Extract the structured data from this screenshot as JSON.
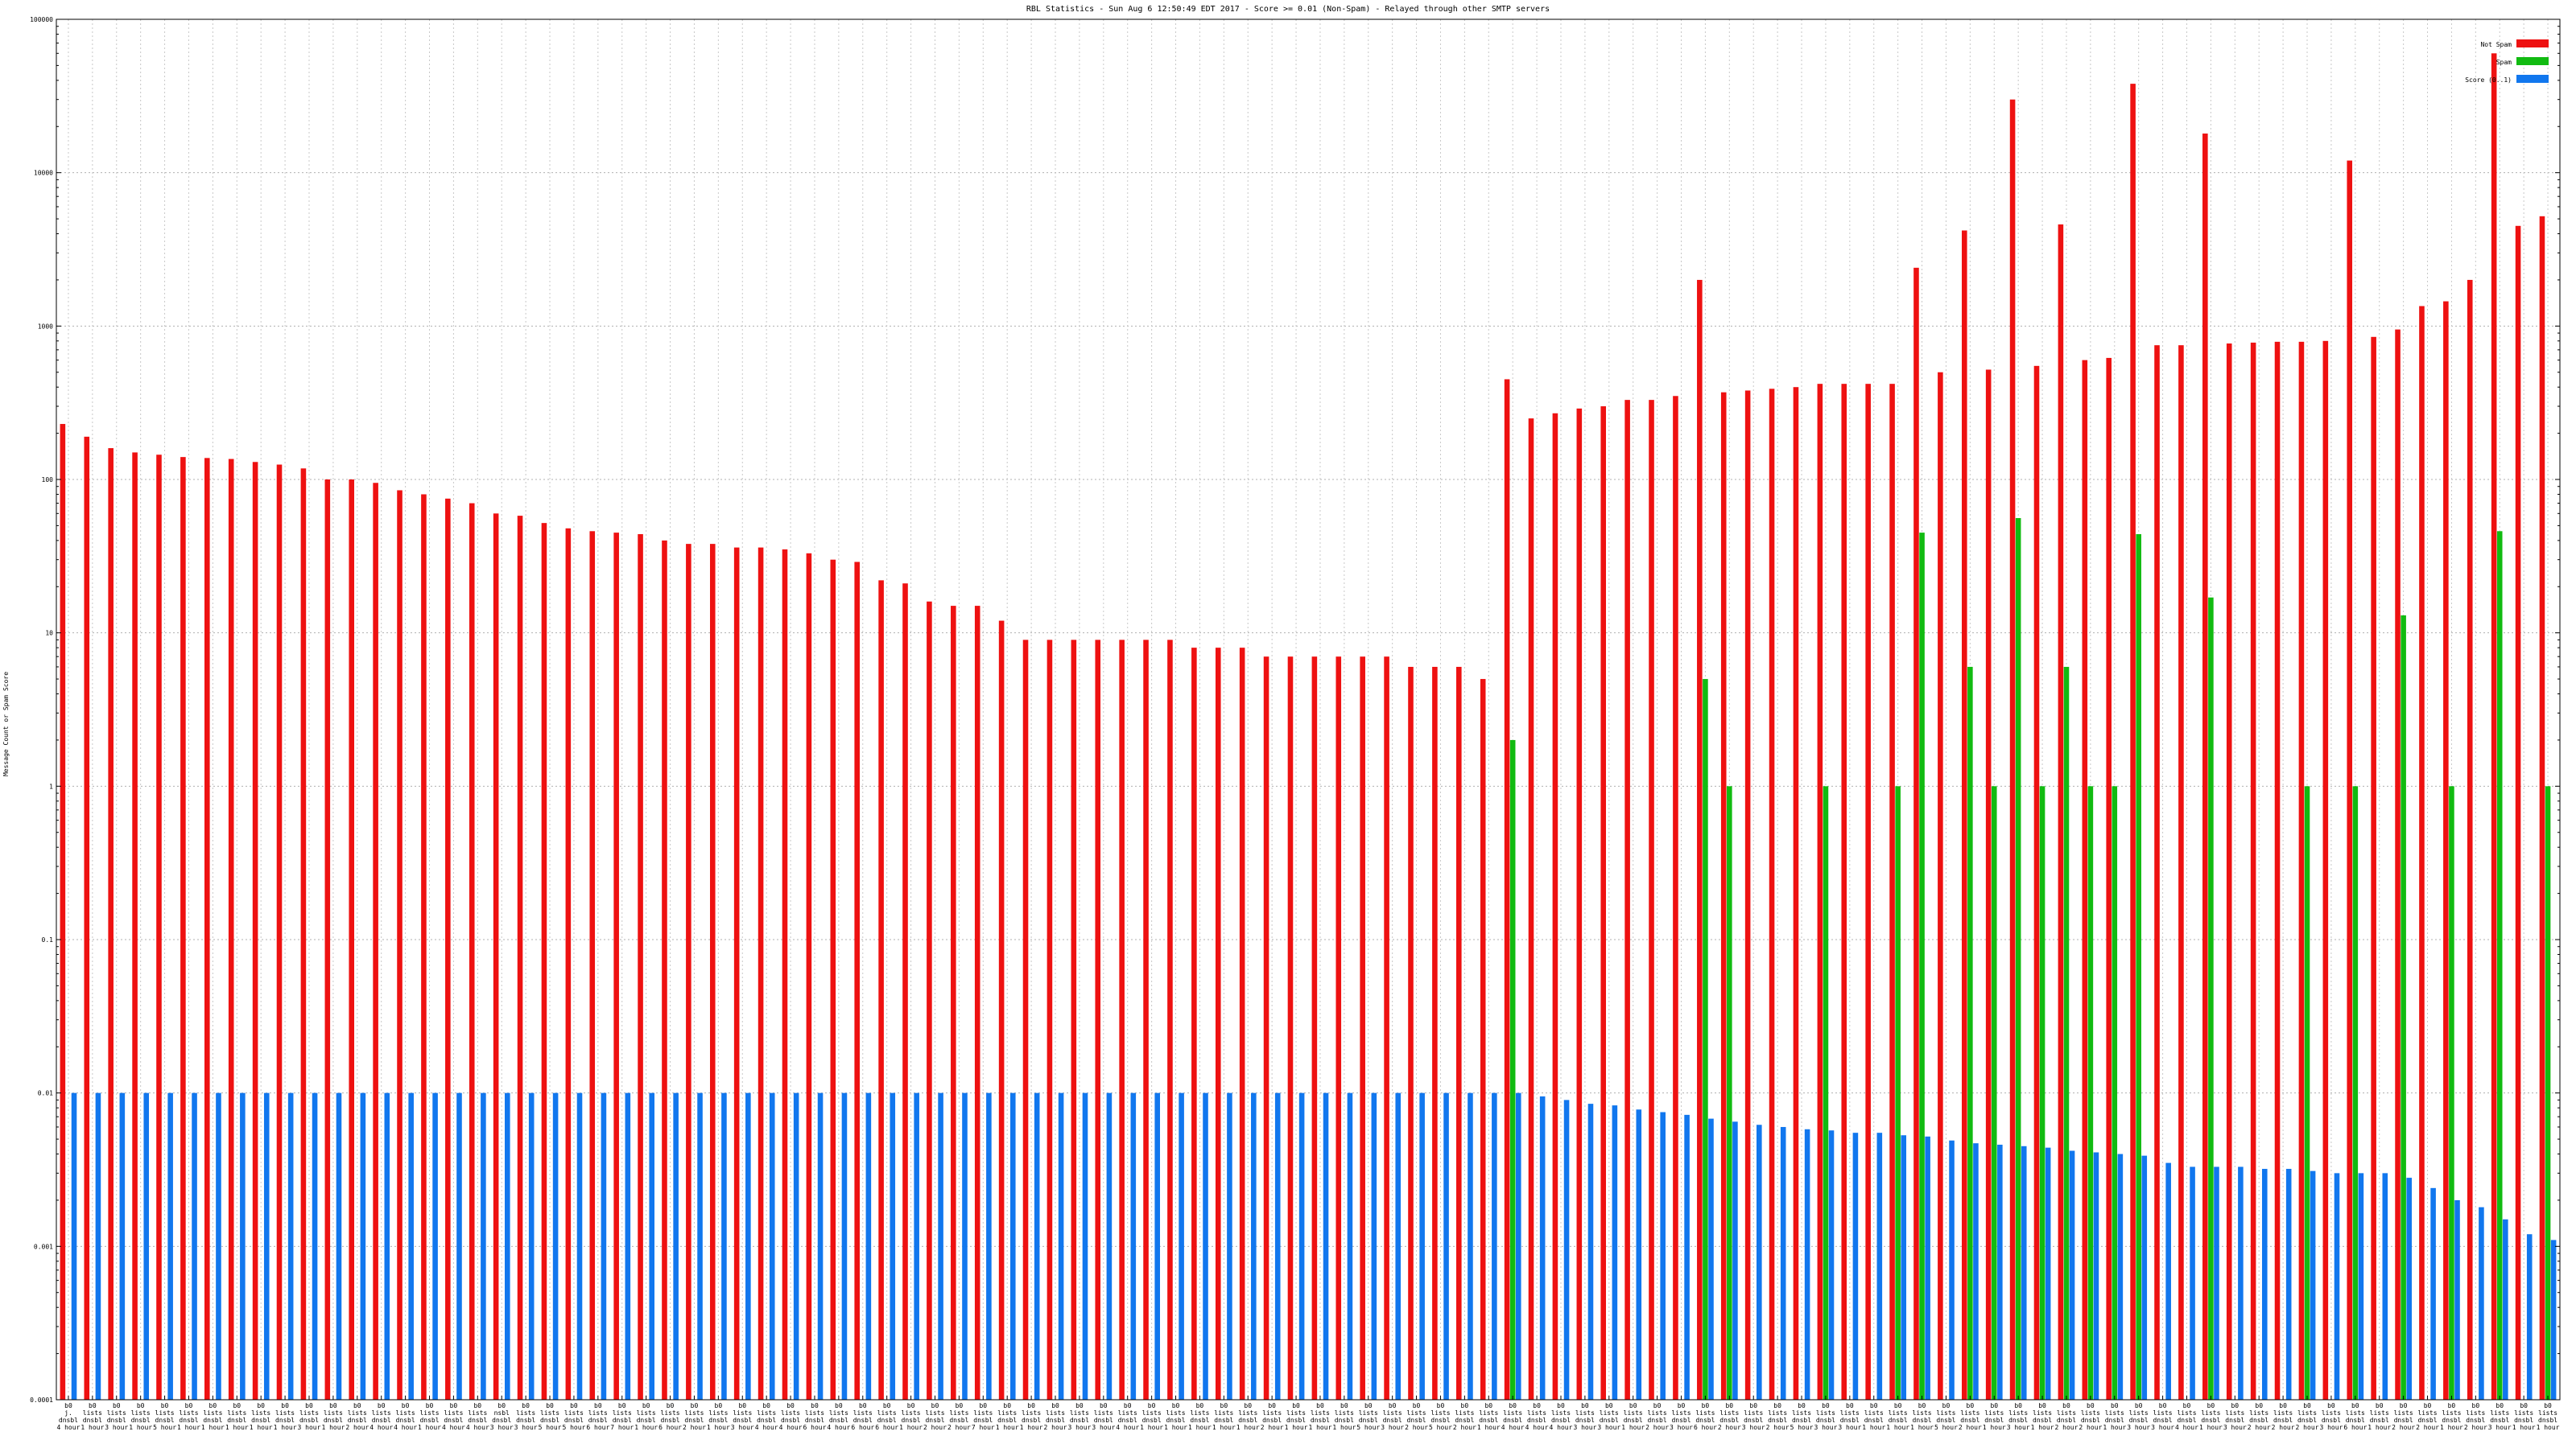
{
  "chart_data": {
    "type": "bar",
    "title": "RBL Statistics - Sun Aug  6 12:50:49 EDT 2017 - Score >= 0.01 (Non-Spam) - Relayed through other SMTP servers",
    "ylabel": "Message Count or Spam Score",
    "xlabel": "",
    "yscale": "log",
    "ylim": [
      0.0001,
      100000
    ],
    "yticks": [
      {
        "value": 0.0001,
        "label": "0.0001"
      },
      {
        "value": 0.001,
        "label": "0.001"
      },
      {
        "value": 0.01,
        "label": "0.01"
      },
      {
        "value": 0.1,
        "label": "0.1"
      },
      {
        "value": 1,
        "label": "1"
      },
      {
        "value": 10,
        "label": "10"
      },
      {
        "value": 100,
        "label": "100"
      },
      {
        "value": 1000,
        "label": "1000"
      },
      {
        "value": 10000,
        "label": "10000"
      },
      {
        "value": 100000,
        "label": "100000"
      }
    ],
    "grid": true,
    "legend_position": "top-right",
    "categories": [
      [
        "b0",
        "j.",
        "dnsbl",
        "4 hour"
      ],
      [
        "b0",
        "lists",
        "dnsbl",
        "1 hour"
      ],
      [
        "b0",
        "lists",
        "dnsbl",
        "3 hour"
      ],
      [
        "b0",
        "lists",
        "dnsbl",
        "1 hour"
      ],
      [
        "b0",
        "lists",
        "dnsbl",
        "5 hour"
      ],
      [
        "b0",
        "lists",
        "dnsbl",
        "1 hour"
      ],
      [
        "b0",
        "lists",
        "dnsbl",
        "1 hour"
      ],
      [
        "b0",
        "lists",
        "dnsbl",
        "1 hour"
      ],
      [
        "b0",
        "lists",
        "dnsbl",
        "1 hour"
      ],
      [
        "b0",
        "lists",
        "dnsbl",
        "1 hour"
      ],
      [
        "b0",
        "lists",
        "dnsbl",
        "3 hour"
      ],
      [
        "b0",
        "lists",
        "dnsbl",
        "1 hour"
      ],
      [
        "b0",
        "lists",
        "dnsbl",
        "2 hour"
      ],
      [
        "b0",
        "lists",
        "dnsbl",
        "4 hour"
      ],
      [
        "b0",
        "lists",
        "dnsbl",
        "4 hour"
      ],
      [
        "b0",
        "lists",
        "dnsbl",
        "1 hour"
      ],
      [
        "b0",
        "lists",
        "dnsbl",
        "4 hour"
      ],
      [
        "b0",
        "lists",
        "dnsbl",
        "4 hour"
      ],
      [
        "b0",
        "nsbl",
        "dnsbl",
        "3 hour"
      ],
      [
        "b0",
        "lists",
        "dnsbl",
        "3 hour"
      ],
      [
        "b0",
        "lists",
        "dnsbl",
        "5 hour"
      ],
      [
        "b0",
        "lists",
        "dnsbl",
        "5 hour"
      ],
      [
        "b0",
        "lists",
        "dnsbl",
        "6 hour"
      ],
      [
        "b0",
        "lists",
        "dnsbl",
        "7 hour"
      ],
      [
        "b0",
        "lists",
        "dnsbl",
        "1 hour"
      ],
      [
        "b0",
        "lists",
        "dnsbl",
        "6 hour"
      ],
      [
        "b0",
        "lists",
        "dnsbl",
        "2 hour"
      ],
      [
        "b0",
        "lists",
        "dnsbl",
        "1 hour"
      ],
      [
        "b0",
        "lists",
        "dnsbl",
        "3 hour"
      ],
      [
        "b0",
        "lists",
        "dnsbl",
        "4 hour"
      ],
      [
        "b0",
        "lists",
        "dnsbl",
        "4 hour"
      ],
      [
        "b0",
        "lists",
        "dnsbl",
        "6 hour"
      ],
      [
        "b0",
        "lists",
        "dnsbl",
        "4 hour"
      ],
      [
        "b0",
        "lists",
        "dnsbl",
        "6 hour"
      ],
      [
        "b0",
        "lists",
        "dnsbl",
        "6 hour"
      ],
      [
        "b0",
        "lists",
        "dnsbl",
        "1 hour"
      ],
      [
        "b0",
        "lists",
        "dnsbl",
        "2 hour"
      ],
      [
        "b0",
        "lists",
        "dnsbl",
        "2 hour"
      ],
      [
        "b0",
        "lists",
        "dnsbl",
        "7 hour"
      ],
      [
        "b0",
        "lists",
        "dnsbl",
        "1 hour"
      ],
      [
        "b0",
        "lists",
        "dnsbl",
        "1 hour"
      ],
      [
        "b0",
        "lists",
        "dnsbl",
        "2 hour"
      ],
      [
        "b0",
        "lists",
        "dnsbl",
        "3 hour"
      ],
      [
        "b0",
        "lists",
        "dnsbl",
        "3 hour"
      ],
      [
        "b0",
        "lists",
        "dnsbl",
        "4 hour"
      ],
      [
        "b0",
        "lists",
        "dnsbl",
        "1 hour"
      ],
      [
        "b0",
        "lists",
        "dnsbl",
        "1 hour"
      ],
      [
        "b0",
        "lists",
        "dnsbl",
        "1 hour"
      ],
      [
        "b0",
        "lists",
        "dnsbl",
        "1 hour"
      ],
      [
        "b0",
        "lists",
        "dnsbl",
        "1 hour"
      ],
      [
        "b0",
        "lists",
        "dnsbl",
        "2 hour"
      ],
      [
        "b0",
        "lists",
        "dnsbl",
        "1 hour"
      ],
      [
        "b0",
        "lists",
        "dnsbl",
        "1 hour"
      ],
      [
        "b0",
        "lists",
        "dnsbl",
        "1 hour"
      ],
      [
        "b0",
        "lists",
        "dnsbl",
        "5 hour"
      ],
      [
        "b0",
        "lists",
        "dnsbl",
        "3 hour"
      ],
      [
        "b0",
        "lists",
        "dnsbl",
        "2 hour"
      ],
      [
        "b0",
        "lists",
        "dnsbl",
        "5 hour"
      ],
      [
        "b0",
        "lists",
        "dnsbl",
        "2 hour"
      ],
      [
        "b0",
        "lists",
        "dnsbl",
        "1 hour"
      ],
      [
        "b0",
        "lists",
        "dnsbl",
        "4 hour"
      ],
      [
        "b0",
        "lists",
        "dnsbl",
        "4 hour"
      ],
      [
        "b0",
        "lists",
        "dnsbl",
        "4 hour"
      ],
      [
        "b0",
        "lists",
        "dnsbl",
        "3 hour"
      ],
      [
        "b0",
        "lists",
        "dnsbl",
        "3 hour"
      ],
      [
        "b0",
        "lists",
        "dnsbl",
        "1 hour"
      ],
      [
        "b0",
        "lists",
        "dnsbl",
        "2 hour"
      ],
      [
        "b0",
        "lists",
        "dnsbl",
        "3 hour"
      ],
      [
        "b0",
        "lists",
        "dnsbl",
        "6 hour"
      ],
      [
        "b0",
        "lists",
        "dnsbl",
        "2 hour"
      ],
      [
        "b0",
        "lists",
        "dnsbl",
        "3 hour"
      ],
      [
        "b0",
        "lists",
        "dnsbl",
        "2 hour"
      ],
      [
        "b0",
        "lists",
        "dnsbl",
        "5 hour"
      ],
      [
        "b0",
        "lists",
        "dnsbl",
        "3 hour"
      ],
      [
        "b0",
        "lists",
        "dnsbl",
        "3 hour"
      ],
      [
        "b0",
        "lists",
        "dnsbl",
        "1 hour"
      ],
      [
        "b0",
        "lists",
        "dnsbl",
        "1 hour"
      ],
      [
        "b0",
        "lists",
        "dnsbl",
        "1 hour"
      ],
      [
        "b0",
        "lists",
        "dnsbl",
        "5 hour"
      ],
      [
        "b0",
        "lists",
        "dnsbl",
        "2 hour"
      ],
      [
        "b0",
        "lists",
        "dnsbl",
        "1 hour"
      ],
      [
        "b0",
        "lists",
        "dnsbl",
        "3 hour"
      ],
      [
        "b0",
        "lists",
        "dnsbl",
        "1 hour"
      ],
      [
        "b0",
        "lists",
        "dnsbl",
        "2 hour"
      ],
      [
        "b0",
        "lists",
        "dnsbl",
        "2 hour"
      ],
      [
        "b0",
        "lists",
        "dnsbl",
        "1 hour"
      ],
      [
        "b0",
        "lists",
        "dnsbl",
        "3 hour"
      ],
      [
        "b0",
        "lists",
        "dnsbl",
        "3 hour"
      ],
      [
        "b0",
        "lists",
        "dnsbl",
        "4 hour"
      ],
      [
        "b0",
        "lists",
        "dnsbl",
        "1 hour"
      ],
      [
        "b0",
        "lists",
        "dnsbl",
        "3 hour"
      ],
      [
        "b0",
        "lists",
        "dnsbl",
        "2 hour"
      ],
      [
        "b0",
        "lists",
        "dnsbl",
        "2 hour"
      ],
      [
        "b0",
        "lists",
        "dnsbl",
        "2 hour"
      ],
      [
        "b0",
        "lists",
        "dnsbl",
        "3 hour"
      ],
      [
        "b0",
        "lists",
        "dnsbl",
        "6 hour"
      ],
      [
        "b0",
        "lists",
        "dnsbl",
        "1 hour"
      ],
      [
        "b0",
        "lists",
        "dnsbl",
        "2 hour"
      ],
      [
        "b0",
        "lists",
        "dnsbl",
        "2 hour"
      ],
      [
        "b0",
        "lists",
        "dnsbl",
        "1 hour"
      ],
      [
        "b0",
        "lists",
        "dnsbl",
        "2 hour"
      ],
      [
        "b0",
        "lists",
        "dnsbl",
        "3 hour"
      ],
      [
        "b0",
        "lists",
        "dnsbl",
        "1 hour"
      ],
      [
        "b0",
        "lists",
        "dnsbl",
        "1 hour"
      ]
    ],
    "series": [
      {
        "name": "Not Spam",
        "color": "#ee1111",
        "values": [
          230,
          190,
          160,
          150,
          145,
          140,
          138,
          136,
          130,
          125,
          118,
          100,
          100,
          95,
          85,
          80,
          75,
          70,
          60,
          58,
          52,
          48,
          46,
          45,
          44,
          40,
          38,
          38,
          36,
          36,
          35,
          33,
          30,
          29,
          22,
          21,
          16,
          15,
          15,
          12,
          9,
          9,
          9,
          9,
          9,
          9,
          9,
          8,
          8,
          8,
          7,
          7,
          7,
          7,
          7,
          7,
          6,
          6,
          6,
          5,
          450,
          250,
          270,
          290,
          300,
          330,
          330,
          350,
          2000,
          370,
          380,
          390,
          400,
          420,
          420,
          420,
          420,
          2400,
          500,
          4200,
          520,
          30000,
          550,
          4600,
          600,
          620,
          38000,
          750,
          750,
          18000,
          770,
          780,
          790,
          790,
          800,
          12000,
          850,
          950,
          1350,
          1450,
          2000,
          60000,
          4500,
          5200
        ]
      },
      {
        "name": "Spam",
        "color": "#11bb11",
        "values": [
          null,
          null,
          null,
          null,
          null,
          null,
          null,
          null,
          null,
          null,
          null,
          null,
          null,
          null,
          null,
          null,
          null,
          null,
          null,
          null,
          null,
          null,
          null,
          null,
          null,
          null,
          null,
          null,
          null,
          null,
          null,
          null,
          null,
          null,
          null,
          null,
          null,
          null,
          null,
          null,
          null,
          null,
          null,
          null,
          null,
          null,
          null,
          null,
          null,
          null,
          null,
          null,
          null,
          null,
          null,
          null,
          null,
          null,
          null,
          null,
          2,
          null,
          null,
          null,
          null,
          null,
          null,
          null,
          5,
          1,
          null,
          null,
          null,
          1,
          null,
          null,
          1,
          45,
          null,
          6,
          1,
          56,
          1,
          6,
          1,
          1,
          44,
          null,
          null,
          17,
          null,
          null,
          null,
          1,
          null,
          1,
          null,
          13,
          null,
          1,
          null,
          46,
          null,
          1
        ]
      },
      {
        "name": "Score (0..1)",
        "color": "#1177ee",
        "values": [
          0.01,
          0.01,
          0.01,
          0.01,
          0.01,
          0.01,
          0.01,
          0.01,
          0.01,
          0.01,
          0.01,
          0.01,
          0.01,
          0.01,
          0.01,
          0.01,
          0.01,
          0.01,
          0.01,
          0.01,
          0.01,
          0.01,
          0.01,
          0.01,
          0.01,
          0.01,
          0.01,
          0.01,
          0.01,
          0.01,
          0.01,
          0.01,
          0.01,
          0.01,
          0.01,
          0.01,
          0.01,
          0.01,
          0.01,
          0.01,
          0.01,
          0.01,
          0.01,
          0.01,
          0.01,
          0.01,
          0.01,
          0.01,
          0.01,
          0.01,
          0.01,
          0.01,
          0.01,
          0.01,
          0.01,
          0.01,
          0.01,
          0.01,
          0.01,
          0.01,
          0.01,
          0.0095,
          0.009,
          0.0085,
          0.0083,
          0.0078,
          0.0075,
          0.0072,
          0.0068,
          0.0065,
          0.0062,
          0.006,
          0.0058,
          0.0057,
          0.0055,
          0.0055,
          0.0053,
          0.0052,
          0.0049,
          0.0047,
          0.0046,
          0.0045,
          0.0044,
          0.0042,
          0.0041,
          0.004,
          0.0039,
          0.0035,
          0.0033,
          0.0033,
          0.0033,
          0.0032,
          0.0032,
          0.0031,
          0.003,
          0.003,
          0.003,
          0.0028,
          0.0024,
          0.002,
          0.0018,
          0.0015,
          0.0012,
          0.0011
        ]
      }
    ]
  }
}
